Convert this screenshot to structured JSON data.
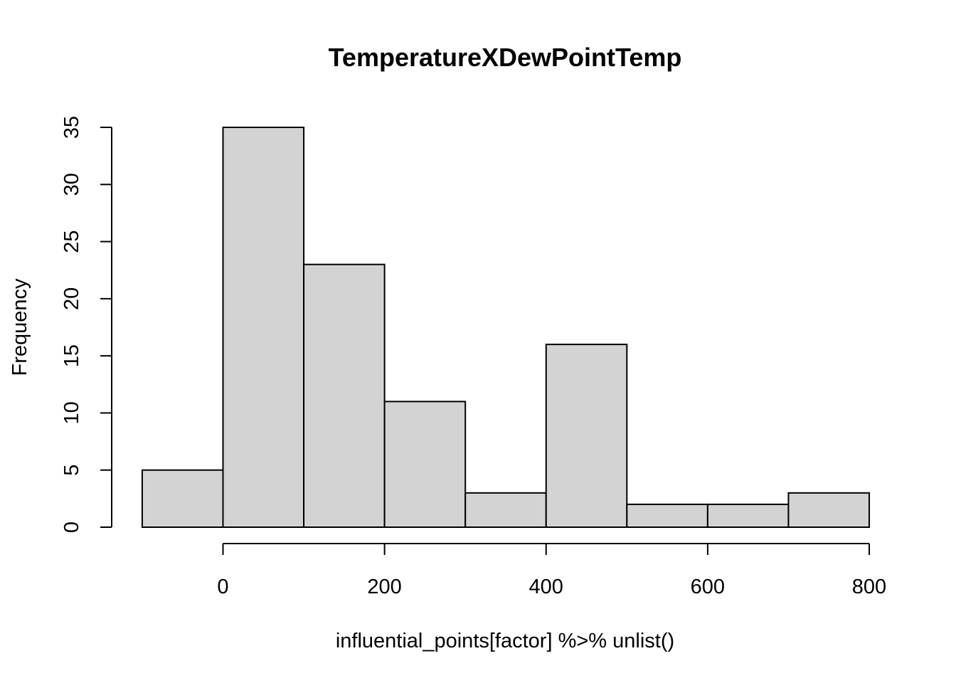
{
  "chart_data": {
    "type": "bar",
    "subtype": "histogram",
    "title": "TemperatureXDewPointTemp",
    "xlabel": "influential_points[factor] %>% unlist()",
    "ylabel": "Frequency",
    "bins": [
      {
        "from": -100,
        "to": 0,
        "count": 5
      },
      {
        "from": 0,
        "to": 100,
        "count": 35
      },
      {
        "from": 100,
        "to": 200,
        "count": 23
      },
      {
        "from": 200,
        "to": 300,
        "count": 11
      },
      {
        "from": 300,
        "to": 400,
        "count": 3
      },
      {
        "from": 400,
        "to": 500,
        "count": 16
      },
      {
        "from": 500,
        "to": 600,
        "count": 2
      },
      {
        "from": 600,
        "to": 700,
        "count": 2
      },
      {
        "from": 700,
        "to": 800,
        "count": 3
      }
    ],
    "xticks": [
      0,
      200,
      400,
      600,
      800
    ],
    "yticks": [
      0,
      5,
      10,
      15,
      20,
      25,
      30,
      35
    ],
    "xlim": [
      -100,
      800
    ],
    "ylim": [
      0,
      35
    ],
    "grid": false,
    "bar_color": "#d3d3d3",
    "edge_color": "#000000"
  }
}
